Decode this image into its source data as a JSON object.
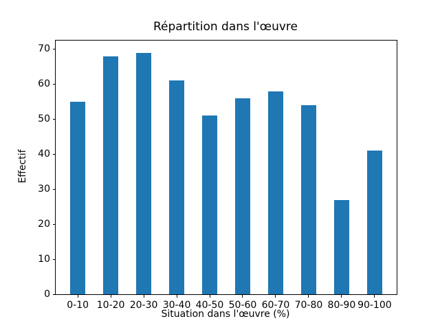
{
  "chart_data": {
    "type": "bar",
    "title": "Répartition dans l'œuvre",
    "xlabel": "Situation dans l'œuvre (%)",
    "ylabel": "Effectif",
    "categories": [
      "0-10",
      "10-20",
      "20-30",
      "30-40",
      "40-50",
      "50-60",
      "60-70",
      "70-80",
      "80-90",
      "90-100"
    ],
    "values": [
      55,
      68,
      69,
      61,
      51,
      56,
      58,
      54,
      27,
      41
    ],
    "x_positions": [
      5,
      15,
      25,
      35,
      45,
      55,
      65,
      75,
      85,
      95
    ],
    "bar_width_units": 4.5,
    "xlim": [
      -1.7,
      101.7
    ],
    "ylim": [
      0,
      72.45
    ],
    "yticks": [
      0,
      10,
      20,
      30,
      40,
      50,
      60,
      70
    ],
    "bar_color": "#1f77b4",
    "axis_color": "#000000",
    "background_color": "#ffffff",
    "grid": false,
    "legend": null
  }
}
